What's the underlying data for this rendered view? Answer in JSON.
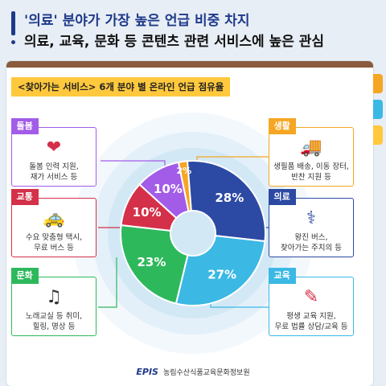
{
  "header": {
    "line1_prefix": "'의료' 분야가 가장 높은 언급 비중 차지",
    "line2": "의료, 교육, 문화 등 콘텐츠 관련 서비스에 높은 관심"
  },
  "subtitle": "<찾아가는 서비스> 6개 분야 별 온라인 언급 점유율",
  "colors": {
    "navy": "#1e3a8a",
    "yellow": "#ffc83d",
    "orange": "#f5a623",
    "purple": "#a25ce8",
    "navyblue": "#2c4aa3",
    "red": "#d43049",
    "green": "#2eb85c",
    "skyblue": "#3bb8e4"
  },
  "cards": [
    {
      "key": "care",
      "label": "돌봄",
      "icon": "heart-hands-icon",
      "glyph": "❤",
      "desc1": "돌봄 인력 지원,",
      "desc2": "재가 서비스 등"
    },
    {
      "key": "life",
      "label": "생활",
      "icon": "truck-icon",
      "glyph": "🚚",
      "desc1": "생필품 배송, 이동 장터,",
      "desc2": "반찬 지원 등"
    },
    {
      "key": "transport",
      "label": "교통",
      "icon": "taxi-icon",
      "glyph": "🚕",
      "desc1": "수요 맞춤형 택시,",
      "desc2": "무료 버스 등"
    },
    {
      "key": "medical",
      "label": "의료",
      "icon": "doctor-icon",
      "glyph": "⚕",
      "desc1": "왕진 버스,",
      "desc2": "찾아가는 주치의 등"
    },
    {
      "key": "culture",
      "label": "문화",
      "icon": "singer-icon",
      "glyph": "♫",
      "desc1": "노래교실 등 취미,",
      "desc2": "힐링, 명상 등"
    },
    {
      "key": "education",
      "label": "교육",
      "icon": "teacher-icon",
      "glyph": "✎",
      "desc1": "평생 교육 지원,",
      "desc2": "무료 법률 상담/교육 등"
    }
  ],
  "chart_data": {
    "type": "pie",
    "title": "<찾아가는 서비스> 6개 분야 별 온라인 언급 점유율",
    "categories": [
      "생활",
      "의료",
      "교육",
      "문화",
      "교통",
      "돌봄"
    ],
    "values": [
      2,
      28,
      27,
      23,
      10,
      10
    ],
    "labels": [
      "2%",
      "28%",
      "27%",
      "23%",
      "10%",
      "10%"
    ],
    "colors": [
      "#f5a623",
      "#2c4aa3",
      "#3bb8e4",
      "#2eb85c",
      "#d43049",
      "#a25ce8"
    ],
    "donut": true
  },
  "footer": {
    "logo": "EPIS",
    "org": "농림수산식품교육문화정보원"
  }
}
